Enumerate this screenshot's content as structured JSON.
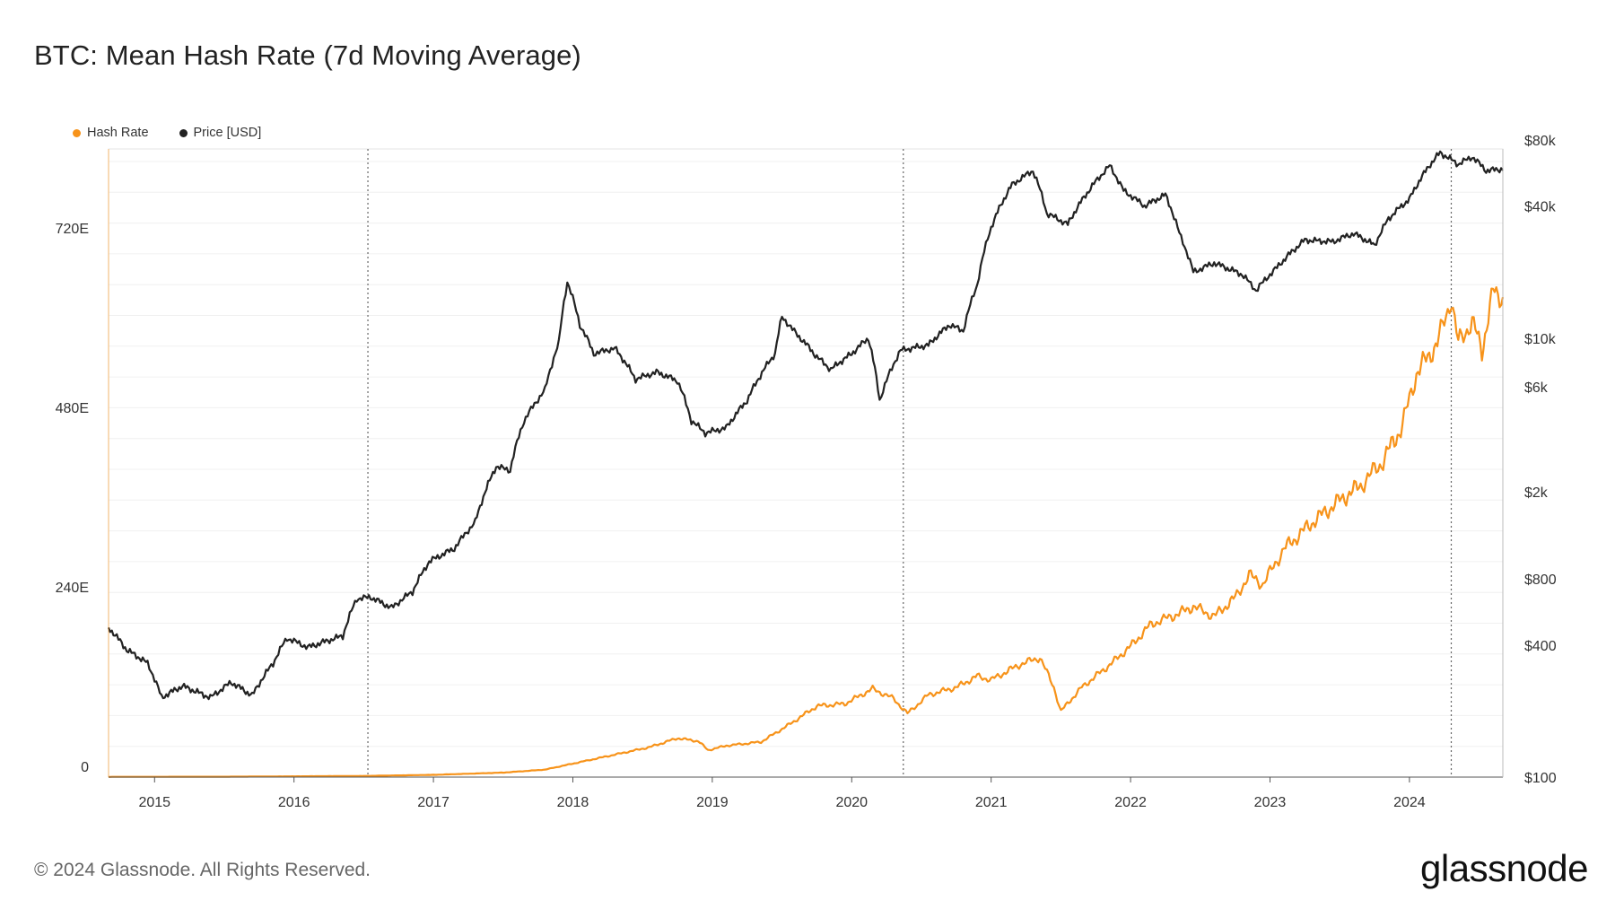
{
  "title": "BTC: Mean Hash Rate (7d Moving Average)",
  "legend": [
    {
      "label": "Hash Rate",
      "color": "#f7931a"
    },
    {
      "label": "Price [USD]",
      "color": "#222222"
    }
  ],
  "footer": "© 2024 Glassnode. All Rights Reserved.",
  "logo": "glassnode",
  "chart_data": {
    "type": "line",
    "title": "BTC: Mean Hash Rate (7d Moving Average)",
    "x_range": [
      2014.67,
      2024.67
    ],
    "x_ticks": [
      2015,
      2016,
      2017,
      2018,
      2019,
      2020,
      2021,
      2022,
      2023,
      2024
    ],
    "x_tick_labels": [
      "2015",
      "2016",
      "2017",
      "2018",
      "2019",
      "2020",
      "2021",
      "2022",
      "2023",
      "2024"
    ],
    "y_left": {
      "label": "Hash Rate",
      "unit": "E",
      "range": [
        0,
        840
      ],
      "ticks": [
        0,
        240,
        480,
        720
      ],
      "tick_labels": [
        "0",
        "240E",
        "480E",
        "720E"
      ]
    },
    "y_right": {
      "label": "Price [USD]",
      "scale": "log",
      "range": [
        100,
        80000
      ],
      "ticks": [
        100,
        400,
        800,
        2000,
        6000,
        10000,
        40000,
        80000
      ],
      "tick_labels": [
        "$100",
        "$400",
        "$800",
        "$2k",
        "$6k",
        "$10k",
        "$40k",
        "$80k"
      ]
    },
    "halvings": [
      2016.53,
      2020.37,
      2024.3
    ],
    "grid": true,
    "series": [
      {
        "name": "Hash Rate",
        "axis": "left",
        "color": "#f7931a",
        "points": [
          [
            2014.67,
            0.3
          ],
          [
            2015.0,
            0.4
          ],
          [
            2015.5,
            0.5
          ],
          [
            2016.0,
            1
          ],
          [
            2016.5,
            1.5
          ],
          [
            2017.0,
            3
          ],
          [
            2017.5,
            6
          ],
          [
            2017.8,
            10
          ],
          [
            2018.0,
            18
          ],
          [
            2018.3,
            30
          ],
          [
            2018.55,
            40
          ],
          [
            2018.75,
            52
          ],
          [
            2018.9,
            48
          ],
          [
            2018.97,
            36
          ],
          [
            2019.1,
            42
          ],
          [
            2019.35,
            47
          ],
          [
            2019.55,
            70
          ],
          [
            2019.75,
            95
          ],
          [
            2019.95,
            98
          ],
          [
            2020.15,
            118
          ],
          [
            2020.3,
            105
          ],
          [
            2020.4,
            85
          ],
          [
            2020.55,
            110
          ],
          [
            2020.75,
            120
          ],
          [
            2020.9,
            135
          ],
          [
            2021.0,
            130
          ],
          [
            2021.2,
            150
          ],
          [
            2021.35,
            160
          ],
          [
            2021.45,
            120
          ],
          [
            2021.5,
            88
          ],
          [
            2021.65,
            120
          ],
          [
            2021.85,
            150
          ],
          [
            2022.0,
            175
          ],
          [
            2022.15,
            205
          ],
          [
            2022.3,
            215
          ],
          [
            2022.45,
            228
          ],
          [
            2022.6,
            215
          ],
          [
            2022.75,
            240
          ],
          [
            2022.85,
            270
          ],
          [
            2022.95,
            258
          ],
          [
            2023.1,
            305
          ],
          [
            2023.3,
            340
          ],
          [
            2023.5,
            370
          ],
          [
            2023.65,
            390
          ],
          [
            2023.8,
            420
          ],
          [
            2023.95,
            470
          ],
          [
            2024.05,
            540
          ],
          [
            2024.2,
            580
          ],
          [
            2024.3,
            640
          ],
          [
            2024.35,
            580
          ],
          [
            2024.45,
            610
          ],
          [
            2024.52,
            570
          ],
          [
            2024.6,
            650
          ],
          [
            2024.67,
            640
          ]
        ]
      },
      {
        "name": "Price [USD]",
        "axis": "right",
        "color": "#222222",
        "points": [
          [
            2014.67,
            480
          ],
          [
            2014.8,
            380
          ],
          [
            2014.95,
            330
          ],
          [
            2015.05,
            230
          ],
          [
            2015.2,
            260
          ],
          [
            2015.4,
            230
          ],
          [
            2015.55,
            270
          ],
          [
            2015.7,
            235
          ],
          [
            2015.85,
            330
          ],
          [
            2015.95,
            430
          ],
          [
            2016.1,
            390
          ],
          [
            2016.35,
            440
          ],
          [
            2016.45,
            650
          ],
          [
            2016.55,
            660
          ],
          [
            2016.7,
            590
          ],
          [
            2016.85,
            700
          ],
          [
            2016.97,
            960
          ],
          [
            2017.15,
            1100
          ],
          [
            2017.3,
            1450
          ],
          [
            2017.45,
            2600
          ],
          [
            2017.55,
            2500
          ],
          [
            2017.65,
            4200
          ],
          [
            2017.8,
            5800
          ],
          [
            2017.9,
            9500
          ],
          [
            2017.96,
            18000
          ],
          [
            2018.05,
            11500
          ],
          [
            2018.15,
            8500
          ],
          [
            2018.3,
            9000
          ],
          [
            2018.45,
            6500
          ],
          [
            2018.6,
            7000
          ],
          [
            2018.75,
            6400
          ],
          [
            2018.85,
            4200
          ],
          [
            2018.95,
            3700
          ],
          [
            2019.1,
            3900
          ],
          [
            2019.25,
            5200
          ],
          [
            2019.45,
            8500
          ],
          [
            2019.5,
            12500
          ],
          [
            2019.6,
            10500
          ],
          [
            2019.75,
            8200
          ],
          [
            2019.85,
            7200
          ],
          [
            2020.0,
            8500
          ],
          [
            2020.12,
            10000
          ],
          [
            2020.2,
            5200
          ],
          [
            2020.35,
            8800
          ],
          [
            2020.55,
            9300
          ],
          [
            2020.7,
            11500
          ],
          [
            2020.8,
            10800
          ],
          [
            2020.9,
            17500
          ],
          [
            2021.0,
            32000
          ],
          [
            2021.15,
            50000
          ],
          [
            2021.3,
            58000
          ],
          [
            2021.4,
            37000
          ],
          [
            2021.55,
            33000
          ],
          [
            2021.7,
            47000
          ],
          [
            2021.85,
            61000
          ],
          [
            2021.95,
            47000
          ],
          [
            2022.1,
            40000
          ],
          [
            2022.25,
            45000
          ],
          [
            2022.35,
            30000
          ],
          [
            2022.45,
            20000
          ],
          [
            2022.6,
            22000
          ],
          [
            2022.8,
            19500
          ],
          [
            2022.9,
            16500
          ],
          [
            2023.05,
            21000
          ],
          [
            2023.25,
            28000
          ],
          [
            2023.45,
            27500
          ],
          [
            2023.6,
            30000
          ],
          [
            2023.75,
            26500
          ],
          [
            2023.85,
            35000
          ],
          [
            2024.0,
            43000
          ],
          [
            2024.15,
            62000
          ],
          [
            2024.22,
            70000
          ],
          [
            2024.35,
            62000
          ],
          [
            2024.45,
            67000
          ],
          [
            2024.55,
            58000
          ],
          [
            2024.67,
            59000
          ]
        ]
      }
    ]
  }
}
